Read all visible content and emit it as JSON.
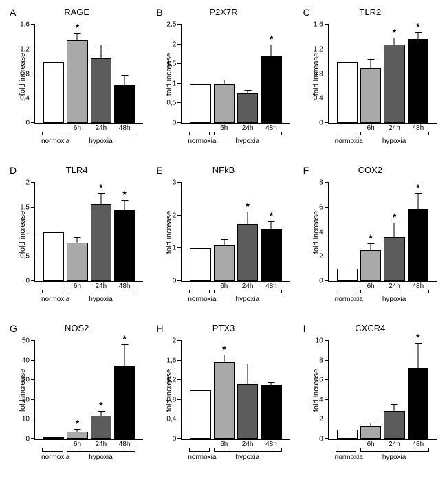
{
  "ylabel": "fold increase",
  "x_categories": [
    "normoxia",
    "6h",
    "24h",
    "48h"
  ],
  "group_labels": [
    "normoxia",
    "hypoxia"
  ],
  "bar_colors": [
    "#ffffff",
    "#a9a9a9",
    "#5c5c5c",
    "#000000"
  ],
  "panels": [
    {
      "letter": "A",
      "title": "RAGE",
      "ymax": 1.6,
      "ticks": [
        "0",
        "0,4",
        "0,8",
        "1,2",
        "1,6"
      ],
      "tick_vals": [
        0,
        0.4,
        0.8,
        1.2,
        1.6
      ],
      "bars": [
        {
          "v": 1.0,
          "e": 0
        },
        {
          "v": 1.35,
          "e": 0.1,
          "star": true
        },
        {
          "v": 1.05,
          "e": 0.22
        },
        {
          "v": 0.62,
          "e": 0.15
        }
      ]
    },
    {
      "letter": "B",
      "title": "P2X7R",
      "ymax": 2.5,
      "ticks": [
        "0",
        "0,5",
        "1",
        "1,5",
        "2",
        "2,5"
      ],
      "tick_vals": [
        0,
        0.5,
        1,
        1.5,
        2,
        2.5
      ],
      "bars": [
        {
          "v": 1.0,
          "e": 0
        },
        {
          "v": 1.0,
          "e": 0.08
        },
        {
          "v": 0.75,
          "e": 0.08
        },
        {
          "v": 1.72,
          "e": 0.25,
          "star": true
        }
      ]
    },
    {
      "letter": "C",
      "title": "TLR2",
      "ymax": 1.6,
      "ticks": [
        "0",
        "0,4",
        "0,8",
        "1,2",
        "1,6"
      ],
      "tick_vals": [
        0,
        0.4,
        0.8,
        1.2,
        1.6
      ],
      "bars": [
        {
          "v": 1.0,
          "e": 0
        },
        {
          "v": 0.9,
          "e": 0.13
        },
        {
          "v": 1.28,
          "e": 0.1,
          "star": true
        },
        {
          "v": 1.37,
          "e": 0.1,
          "star": true
        }
      ]
    },
    {
      "letter": "D",
      "title": "TLR4",
      "ymax": 2.0,
      "ticks": [
        "0",
        "0,5",
        "1",
        "1,5",
        "2"
      ],
      "tick_vals": [
        0,
        0.5,
        1,
        1.5,
        2
      ],
      "bars": [
        {
          "v": 1.0,
          "e": 0
        },
        {
          "v": 0.78,
          "e": 0.1
        },
        {
          "v": 1.56,
          "e": 0.22,
          "star": true
        },
        {
          "v": 1.45,
          "e": 0.18,
          "star": true
        }
      ]
    },
    {
      "letter": "E",
      "title": "NFkB",
      "ymax": 3.0,
      "ticks": [
        "0",
        "1",
        "2",
        "3"
      ],
      "tick_vals": [
        0,
        1,
        2,
        3
      ],
      "bars": [
        {
          "v": 1.0,
          "e": 0
        },
        {
          "v": 1.1,
          "e": 0.15
        },
        {
          "v": 1.75,
          "e": 0.35,
          "star": true
        },
        {
          "v": 1.6,
          "e": 0.2,
          "star": true
        }
      ]
    },
    {
      "letter": "F",
      "title": "COX2",
      "ymax": 8.0,
      "ticks": [
        "0",
        "2",
        "4",
        "6",
        "8"
      ],
      "tick_vals": [
        0,
        2,
        4,
        6,
        8
      ],
      "bars": [
        {
          "v": 1.0,
          "e": 0
        },
        {
          "v": 2.5,
          "e": 0.5,
          "star": true
        },
        {
          "v": 3.6,
          "e": 1.1,
          "star": true
        },
        {
          "v": 5.9,
          "e": 1.2,
          "star": true
        }
      ]
    },
    {
      "letter": "G",
      "title": "NOS2",
      "ymax": 50,
      "ticks": [
        "0",
        "10",
        "20",
        "30",
        "40",
        "50"
      ],
      "tick_vals": [
        0,
        10,
        20,
        30,
        40,
        50
      ],
      "bars": [
        {
          "v": 1.0,
          "e": 0
        },
        {
          "v": 4.0,
          "e": 1.0,
          "star": true
        },
        {
          "v": 12.0,
          "e": 2.0,
          "star": true
        },
        {
          "v": 37.0,
          "e": 11.0,
          "star": true
        }
      ]
    },
    {
      "letter": "H",
      "title": "PTX3",
      "ymax": 2.0,
      "ticks": [
        "0",
        "0,4",
        "0,8",
        "1,2",
        "1,6",
        "2"
      ],
      "tick_vals": [
        0,
        0.4,
        0.8,
        1.2,
        1.6,
        2
      ],
      "bars": [
        {
          "v": 1.0,
          "e": 0
        },
        {
          "v": 1.57,
          "e": 0.13,
          "star": true
        },
        {
          "v": 1.12,
          "e": 0.4
        },
        {
          "v": 1.1,
          "e": 0.05
        }
      ]
    },
    {
      "letter": "I",
      "title": "CXCR4",
      "ymax": 10,
      "ticks": [
        "0",
        "2",
        "4",
        "6",
        "8",
        "10"
      ],
      "tick_vals": [
        0,
        2,
        4,
        6,
        8,
        10
      ],
      "bars": [
        {
          "v": 1.0,
          "e": 0
        },
        {
          "v": 1.3,
          "e": 0.3
        },
        {
          "v": 2.9,
          "e": 0.6
        },
        {
          "v": 7.2,
          "e": 2.5,
          "star": true
        }
      ]
    }
  ]
}
